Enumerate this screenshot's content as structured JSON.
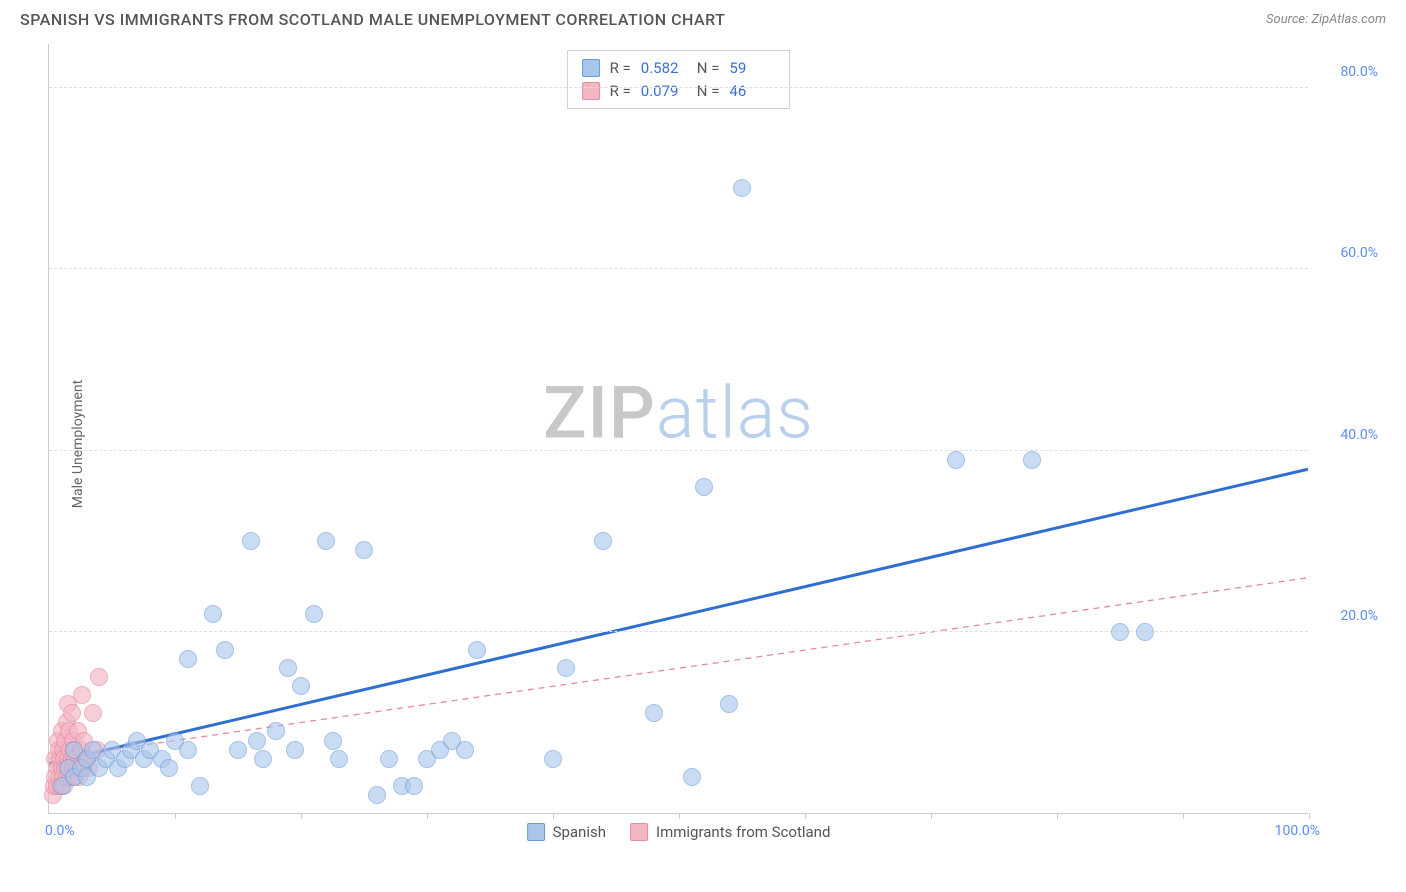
{
  "header": {
    "title": "SPANISH VS IMMIGRANTS FROM SCOTLAND MALE UNEMPLOYMENT CORRELATION CHART",
    "source_label": "Source:",
    "source_name": "ZipAtlas.com"
  },
  "watermark": {
    "part1": "ZIP",
    "part2": "atlas"
  },
  "chart": {
    "type": "scatter",
    "y_axis_label": "Male Unemployment",
    "background_color": "#ffffff",
    "grid_color": "#e0e0e0",
    "axis_color": "#cccccc",
    "tick_label_color": "#5b8def",
    "xlim": [
      0,
      100
    ],
    "ylim": [
      0,
      85
    ],
    "yticks": [
      {
        "value": 20,
        "label": "20.0%"
      },
      {
        "value": 40,
        "label": "40.0%"
      },
      {
        "value": 60,
        "label": "60.0%"
      },
      {
        "value": 80,
        "label": "80.0%"
      }
    ],
    "x_vert_ticks": [
      10,
      20,
      30,
      40,
      50,
      60,
      70,
      80,
      90,
      100
    ],
    "x_min_label": "0.0%",
    "x_max_label": "100.0%",
    "marker_radius": 9,
    "series": [
      {
        "name": "Spanish",
        "fill_color": "#a8c5ec",
        "stroke_color": "#6a9bd8",
        "fill_opacity": 0.6,
        "R": "0.582",
        "N": "59",
        "trend": {
          "y_at_x0": 5.5,
          "y_at_x100": 38.0,
          "stroke": "#2f6fd0",
          "width": 3,
          "dash": ""
        },
        "points": [
          [
            1,
            3
          ],
          [
            1.5,
            5
          ],
          [
            2,
            4
          ],
          [
            2,
            7
          ],
          [
            2.5,
            5
          ],
          [
            3,
            6
          ],
          [
            3,
            4
          ],
          [
            3.5,
            7
          ],
          [
            4,
            5
          ],
          [
            4.5,
            6
          ],
          [
            5,
            7
          ],
          [
            5.5,
            5
          ],
          [
            6,
            6
          ],
          [
            6.5,
            7
          ],
          [
            7,
            8
          ],
          [
            7.5,
            6
          ],
          [
            8,
            7
          ],
          [
            9,
            6
          ],
          [
            9.5,
            5
          ],
          [
            10,
            8
          ],
          [
            11,
            7
          ],
          [
            11,
            17
          ],
          [
            12,
            3
          ],
          [
            13,
            22
          ],
          [
            14,
            18
          ],
          [
            15,
            7
          ],
          [
            16,
            30
          ],
          [
            16.5,
            8
          ],
          [
            17,
            6
          ],
          [
            18,
            9
          ],
          [
            19,
            16
          ],
          [
            19.5,
            7
          ],
          [
            20,
            14
          ],
          [
            21,
            22
          ],
          [
            22,
            30
          ],
          [
            22.5,
            8
          ],
          [
            23,
            6
          ],
          [
            25,
            29
          ],
          [
            26,
            2
          ],
          [
            27,
            6
          ],
          [
            28,
            3
          ],
          [
            29,
            3
          ],
          [
            30,
            6
          ],
          [
            31,
            7
          ],
          [
            32,
            8
          ],
          [
            33,
            7
          ],
          [
            34,
            18
          ],
          [
            40,
            6
          ],
          [
            41,
            16
          ],
          [
            44,
            30
          ],
          [
            48,
            11
          ],
          [
            51,
            4
          ],
          [
            52,
            36
          ],
          [
            54,
            12
          ],
          [
            55,
            69
          ],
          [
            72,
            39
          ],
          [
            78,
            39
          ],
          [
            85,
            20
          ],
          [
            87,
            20
          ]
        ]
      },
      {
        "name": "Immigrants from Scotland",
        "fill_color": "#f3b6c4",
        "stroke_color": "#e88aa0",
        "fill_opacity": 0.65,
        "R": "0.079",
        "N": "46",
        "trend": {
          "y_at_x0": 6.0,
          "y_at_x100": 26.0,
          "stroke": "#e48aa0",
          "width": 1.3,
          "dash": "6 5"
        },
        "points": [
          [
            0.3,
            2
          ],
          [
            0.4,
            3
          ],
          [
            0.5,
            4
          ],
          [
            0.5,
            6
          ],
          [
            0.6,
            3
          ],
          [
            0.7,
            5
          ],
          [
            0.7,
            8
          ],
          [
            0.8,
            4
          ],
          [
            0.8,
            7
          ],
          [
            0.9,
            3
          ],
          [
            0.9,
            6
          ],
          [
            1.0,
            5
          ],
          [
            1.0,
            9
          ],
          [
            1.1,
            4
          ],
          [
            1.1,
            7
          ],
          [
            1.2,
            3
          ],
          [
            1.2,
            6
          ],
          [
            1.3,
            5
          ],
          [
            1.3,
            8
          ],
          [
            1.4,
            4
          ],
          [
            1.4,
            10
          ],
          [
            1.5,
            6
          ],
          [
            1.5,
            12
          ],
          [
            1.6,
            5
          ],
          [
            1.6,
            9
          ],
          [
            1.7,
            4
          ],
          [
            1.7,
            7
          ],
          [
            1.8,
            6
          ],
          [
            1.8,
            11
          ],
          [
            1.9,
            5
          ],
          [
            1.9,
            8
          ],
          [
            2.0,
            4
          ],
          [
            2.0,
            7
          ],
          [
            2.1,
            6
          ],
          [
            2.2,
            5
          ],
          [
            2.3,
            9
          ],
          [
            2.4,
            4
          ],
          [
            2.5,
            7
          ],
          [
            2.6,
            13
          ],
          [
            2.7,
            5
          ],
          [
            2.8,
            8
          ],
          [
            3.0,
            6
          ],
          [
            3.2,
            5
          ],
          [
            3.5,
            11
          ],
          [
            3.8,
            7
          ],
          [
            4.0,
            15
          ]
        ]
      }
    ]
  },
  "stats_box": {
    "r_label": "R =",
    "n_label": "N ="
  },
  "bottom_legend": {
    "items": [
      {
        "label": "Spanish",
        "fill": "#a8c5ec",
        "stroke": "#6a9bd8"
      },
      {
        "label": "Immigrants from Scotland",
        "fill": "#f3b6c4",
        "stroke": "#e88aa0"
      }
    ]
  }
}
